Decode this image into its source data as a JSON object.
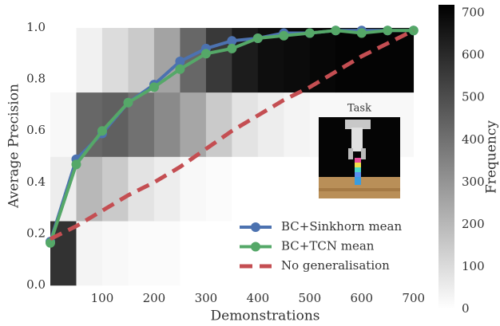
{
  "chart_data": {
    "type": "line",
    "xlabel": "Demonstrations",
    "ylabel": "Average Precision",
    "xlim": [
      0,
      705
    ],
    "ylim": [
      0,
      1.09
    ],
    "xticks": [
      100,
      200,
      300,
      400,
      500,
      600,
      700
    ],
    "yticks": [
      {
        "value": 0,
        "label": "0.0"
      },
      {
        "value": 0.2,
        "label": "0.2"
      },
      {
        "value": 0.4,
        "label": "0.4"
      },
      {
        "value": 0.6,
        "label": "0.6"
      },
      {
        "value": 0.8,
        "label": "0.8"
      },
      {
        "value": 1.0,
        "label": "1.0"
      }
    ],
    "x": [
      0,
      50,
      100,
      150,
      200,
      250,
      300,
      350,
      400,
      450,
      500,
      550,
      600,
      650,
      700
    ],
    "series": [
      {
        "name": "BC+Sinkhorn mean",
        "color": "#4c72b0",
        "marker": true,
        "dashed": false,
        "values": [
          0.17,
          0.49,
          0.59,
          0.71,
          0.78,
          0.87,
          0.92,
          0.95,
          0.96,
          0.98,
          0.98,
          0.99,
          0.99,
          0.99,
          0.99
        ]
      },
      {
        "name": "BC+TCN mean",
        "color": "#55a868",
        "marker": true,
        "dashed": false,
        "values": [
          0.165,
          0.47,
          0.6,
          0.71,
          0.77,
          0.84,
          0.9,
          0.92,
          0.96,
          0.97,
          0.98,
          0.99,
          0.98,
          0.99,
          0.99
        ]
      },
      {
        "name": "No generalisation",
        "color": "#c44e52",
        "marker": false,
        "dashed": true,
        "values": [
          0.18,
          0.23,
          0.29,
          0.35,
          0.4,
          0.46,
          0.53,
          0.6,
          0.66,
          0.72,
          0.77,
          0.83,
          0.89,
          0.94,
          0.99
        ]
      }
    ],
    "legend": "lower right",
    "heatmap": {
      "x_bins": [
        0,
        50,
        100,
        150,
        200,
        250,
        300,
        350,
        400,
        450,
        500,
        550,
        600,
        650,
        700
      ],
      "y_bins": [
        0,
        0.25,
        0.5,
        0.75,
        1.0
      ],
      "counts": [
        [
          580,
          30,
          20,
          10,
          10,
          0,
          0,
          0,
          0,
          0,
          0,
          0,
          0,
          0
        ],
        [
          50,
          200,
          150,
          80,
          50,
          20,
          10,
          0,
          0,
          0,
          0,
          0,
          0,
          0
        ],
        [
          20,
          430,
          450,
          400,
          330,
          250,
          150,
          80,
          50,
          30,
          20,
          20,
          20,
          20
        ],
        [
          0,
          40,
          100,
          150,
          260,
          430,
          560,
          640,
          680,
          690,
          700,
          710,
          710,
          710
        ]
      ]
    },
    "colorbar": {
      "label": "Frequency",
      "lim": [
        0,
        720
      ],
      "ticks": [
        0,
        100,
        200,
        300,
        400,
        500,
        600,
        700
      ]
    },
    "inset_label": "Task"
  }
}
